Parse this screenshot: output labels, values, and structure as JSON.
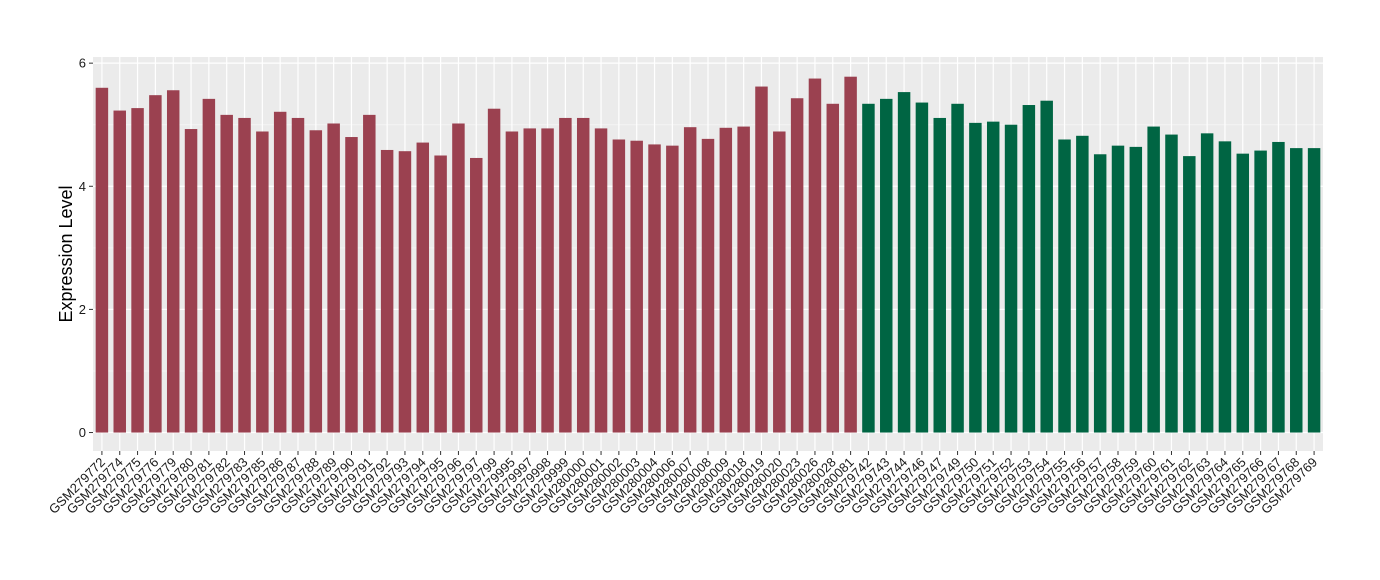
{
  "chart_data": {
    "type": "bar",
    "title": "",
    "xlabel": "",
    "ylabel": "Expression Level",
    "ylim": [
      -0.3,
      6.1
    ],
    "yticks": [
      0,
      2,
      4,
      6
    ],
    "grid": true,
    "legend": "none",
    "colors": {
      "group1": "#9b4150",
      "group2": "#006543",
      "panel": "#ebebeb",
      "grid_major": "#ffffff",
      "grid_minor": "#f4f4f4"
    },
    "categories": [
      "GSM279772",
      "GSM279774",
      "GSM279775",
      "GSM279776",
      "GSM279779",
      "GSM279780",
      "GSM279781",
      "GSM279782",
      "GSM279783",
      "GSM279785",
      "GSM279786",
      "GSM279787",
      "GSM279788",
      "GSM279789",
      "GSM279790",
      "GSM279791",
      "GSM279792",
      "GSM279793",
      "GSM279794",
      "GSM279795",
      "GSM279796",
      "GSM279797",
      "GSM279799",
      "GSM279995",
      "GSM279997",
      "GSM279998",
      "GSM279999",
      "GSM280000",
      "GSM280001",
      "GSM280002",
      "GSM280003",
      "GSM280004",
      "GSM280006",
      "GSM280007",
      "GSM280008",
      "GSM280009",
      "GSM280018",
      "GSM280019",
      "GSM280020",
      "GSM280023",
      "GSM280026",
      "GSM280028",
      "GSM280081",
      "GSM279742",
      "GSM279743",
      "GSM279744",
      "GSM279746",
      "GSM279747",
      "GSM279749",
      "GSM279750",
      "GSM279751",
      "GSM279752",
      "GSM279753",
      "GSM279754",
      "GSM279755",
      "GSM279756",
      "GSM279757",
      "GSM279758",
      "GSM279759",
      "GSM279760",
      "GSM279761",
      "GSM279762",
      "GSM279763",
      "GSM279764",
      "GSM279765",
      "GSM279766",
      "GSM279767",
      "GSM279768",
      "GSM279769"
    ],
    "values": [
      5.6,
      5.23,
      5.27,
      5.48,
      5.56,
      4.93,
      5.42,
      5.16,
      5.11,
      4.89,
      5.21,
      5.11,
      4.91,
      5.02,
      4.8,
      5.16,
      4.59,
      4.57,
      4.71,
      4.5,
      5.02,
      4.46,
      5.26,
      4.89,
      4.94,
      4.94,
      5.11,
      5.11,
      4.94,
      4.76,
      4.74,
      4.68,
      4.66,
      4.96,
      4.77,
      4.95,
      4.97,
      5.62,
      4.89,
      5.43,
      5.75,
      5.34,
      5.78,
      5.34,
      5.42,
      5.53,
      5.36,
      5.11,
      5.34,
      5.03,
      5.05,
      5.0,
      5.32,
      5.39,
      4.76,
      4.82,
      4.52,
      4.66,
      4.64,
      4.97,
      4.84,
      4.49,
      4.86,
      4.73,
      4.53,
      4.58,
      4.72,
      4.62,
      4.62
    ],
    "groups": [
      1,
      1,
      1,
      1,
      1,
      1,
      1,
      1,
      1,
      1,
      1,
      1,
      1,
      1,
      1,
      1,
      1,
      1,
      1,
      1,
      1,
      1,
      1,
      1,
      1,
      1,
      1,
      1,
      1,
      1,
      1,
      1,
      1,
      1,
      1,
      1,
      1,
      1,
      1,
      1,
      1,
      1,
      1,
      2,
      2,
      2,
      2,
      2,
      2,
      2,
      2,
      2,
      2,
      2,
      2,
      2,
      2,
      2,
      2,
      2,
      2,
      2,
      2,
      2,
      2,
      2,
      2,
      2,
      2
    ]
  }
}
